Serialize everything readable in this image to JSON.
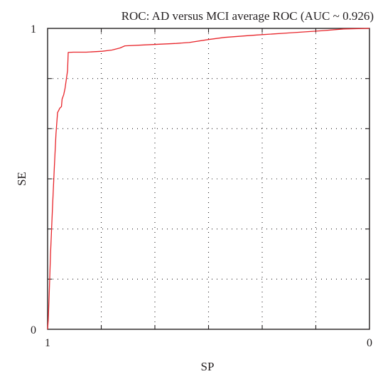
{
  "chart_data": {
    "type": "line",
    "title": "ROC: AD versus MCI average ROC (AUC ~ 0.926)",
    "xlabel": "SP",
    "ylabel": "SE",
    "x_reversed": true,
    "xlim": [
      1,
      0
    ],
    "ylim": [
      0,
      1
    ],
    "x_tick_labels": [
      {
        "value": 1,
        "label": "1"
      },
      {
        "value": 0,
        "label": "0"
      }
    ],
    "y_tick_labels": [
      {
        "value": 0,
        "label": "0"
      },
      {
        "value": 1,
        "label": "1"
      }
    ],
    "gridlines": {
      "x": [
        0.8333,
        0.6667,
        0.5,
        0.3333,
        0.1667
      ],
      "y": [
        0.1667,
        0.3333,
        0.5,
        0.6667,
        0.8333
      ],
      "style": "dotted"
    },
    "grid": true,
    "legend": "none",
    "series": [
      {
        "color": "#e8242a",
        "points": [
          {
            "x": 1.0,
            "y": 0.0
          },
          {
            "x": 0.998,
            "y": 0.03
          },
          {
            "x": 0.995,
            "y": 0.12
          },
          {
            "x": 0.991,
            "y": 0.25
          },
          {
            "x": 0.985,
            "y": 0.4
          },
          {
            "x": 0.979,
            "y": 0.54
          },
          {
            "x": 0.974,
            "y": 0.65
          },
          {
            "x": 0.969,
            "y": 0.72
          },
          {
            "x": 0.962,
            "y": 0.735
          },
          {
            "x": 0.957,
            "y": 0.74
          },
          {
            "x": 0.955,
            "y": 0.765
          },
          {
            "x": 0.95,
            "y": 0.78
          },
          {
            "x": 0.946,
            "y": 0.8
          },
          {
            "x": 0.942,
            "y": 0.83
          },
          {
            "x": 0.938,
            "y": 0.86
          },
          {
            "x": 0.936,
            "y": 0.92
          },
          {
            "x": 0.92,
            "y": 0.921
          },
          {
            "x": 0.88,
            "y": 0.921
          },
          {
            "x": 0.83,
            "y": 0.924
          },
          {
            "x": 0.8,
            "y": 0.928
          },
          {
            "x": 0.775,
            "y": 0.935
          },
          {
            "x": 0.76,
            "y": 0.942
          },
          {
            "x": 0.7,
            "y": 0.945
          },
          {
            "x": 0.6,
            "y": 0.95
          },
          {
            "x": 0.56,
            "y": 0.953
          },
          {
            "x": 0.5,
            "y": 0.963
          },
          {
            "x": 0.45,
            "y": 0.97
          },
          {
            "x": 0.35,
            "y": 0.978
          },
          {
            "x": 0.25,
            "y": 0.985
          },
          {
            "x": 0.15,
            "y": 0.992
          },
          {
            "x": 0.08,
            "y": 0.998
          },
          {
            "x": 0.0,
            "y": 1.0
          }
        ]
      }
    ]
  }
}
